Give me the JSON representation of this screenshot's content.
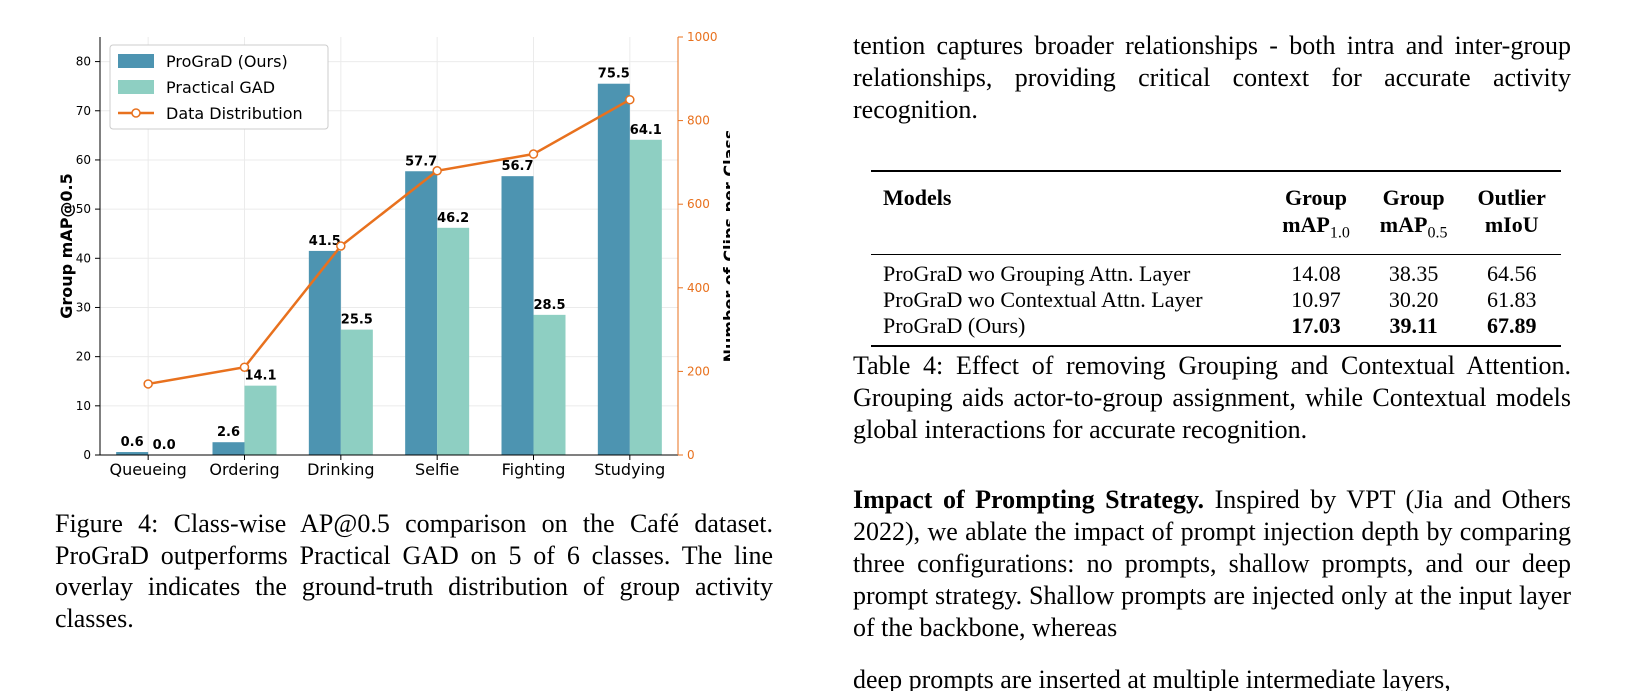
{
  "chart_data": {
    "type": "bar",
    "categories": [
      "Queueing",
      "Ordering",
      "Drinking",
      "Selfie",
      "Fighting",
      "Studying"
    ],
    "series": [
      {
        "name": "ProGraD (Ours)",
        "values": [
          0.6,
          2.6,
          41.5,
          57.7,
          56.7,
          75.5
        ],
        "color": "#4d94b1"
      },
      {
        "name": "Practical GAD",
        "values": [
          0.0,
          14.1,
          25.5,
          46.2,
          28.5,
          64.1
        ],
        "color": "#8ecfc2"
      }
    ],
    "line_series": {
      "name": "Data Distribution",
      "values": [
        170,
        210,
        500,
        680,
        720,
        850
      ],
      "color": "#e8711e",
      "axis": "right"
    },
    "bar_labels": [
      [
        "0.6",
        "2.6",
        "41.5",
        "57.7",
        "56.7",
        "75.5"
      ],
      [
        "0.0",
        "14.1",
        "25.5",
        "46.2",
        "28.5",
        "64.1"
      ]
    ],
    "ylabel": "Group mAP@0.5",
    "ylabel_right": "Number of Clips per Class",
    "ylim": [
      0,
      85
    ],
    "ylim_right": [
      0,
      1000
    ],
    "yticks": [
      0,
      10,
      20,
      30,
      40,
      50,
      60,
      70,
      80
    ],
    "yticks_right": [
      0,
      200,
      400,
      600,
      800,
      1000
    ],
    "grid": true,
    "legend_position": "top-left"
  },
  "figure_caption": "Figure 4: Class-wise AP@0.5 comparison on the Café dataset. ProGraD outperforms Practical GAD on 5 of 6 classes. The line overlay indicates the ground-truth distribution of group activity classes.",
  "para1": "tention captures broader relationships - both intra and inter-group relationships, providing critical context for accurate activity recognition.",
  "table": {
    "headers": {
      "models": "Models",
      "g1_top": "Group",
      "g1_base": "mAP",
      "g1_sub": "1.0",
      "g2_top": "Group",
      "g2_base": "mAP",
      "g2_sub": "0.5",
      "o_top": "Outlier",
      "o_base": "mIoU"
    },
    "rows": [
      {
        "model": "ProGraD wo Grouping Attn. Layer",
        "g1": "14.08",
        "g2": "38.35",
        "o": "64.56"
      },
      {
        "model": "ProGraD wo Contextual Attn. Layer",
        "g1": "10.97",
        "g2": "30.20",
        "o": "61.83"
      },
      {
        "model": "ProGraD (Ours)",
        "g1": "17.03",
        "g2": "39.11",
        "o": "67.89"
      }
    ]
  },
  "table_caption": "Table 4: Effect of removing Grouping and Contextual Attention. Grouping aids actor-to-group assignment, while Contextual models global interactions for accurate recognition.",
  "para2_head": "Impact of Prompting Strategy.",
  "para2_body": " Inspired by VPT (Jia and Others 2022), we ablate the impact of prompt injection depth by comparing three configurations: no prompts, shallow prompts, and our deep prompt strategy. Shallow prompts are injected only at the input layer of the backbone, whereas",
  "para2_cut": "deep prompts are inserted at multiple intermediate layers,"
}
